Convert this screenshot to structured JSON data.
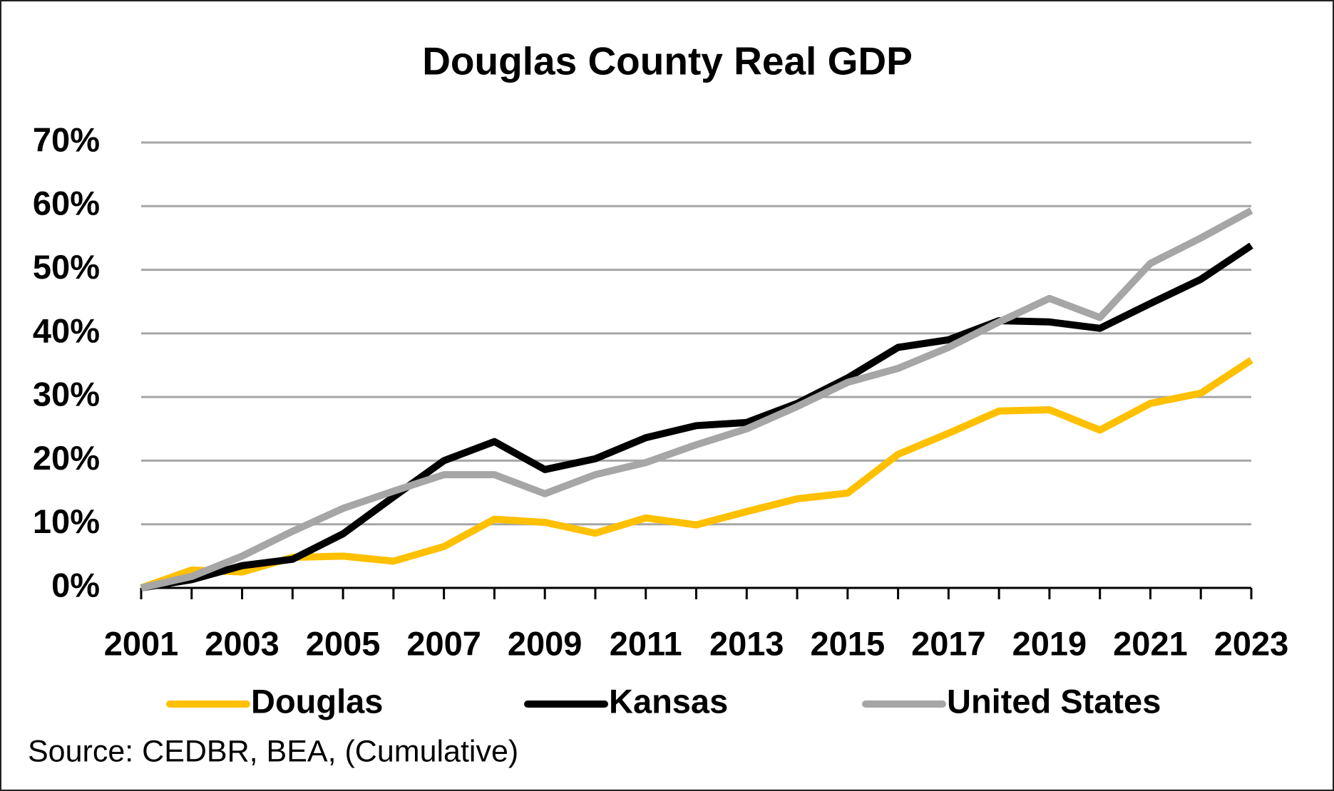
{
  "chart_data": {
    "type": "line",
    "title": "Douglas County Real GDP",
    "x": [
      2001,
      2002,
      2003,
      2004,
      2005,
      2006,
      2007,
      2008,
      2009,
      2010,
      2011,
      2012,
      2013,
      2014,
      2015,
      2016,
      2017,
      2018,
      2019,
      2020,
      2021,
      2022,
      2023
    ],
    "series": [
      {
        "name": "Douglas",
        "color": "#ffc000",
        "values": [
          0,
          2.8,
          2.5,
          4.8,
          5,
          4.2,
          6.5,
          10.8,
          10.3,
          8.6,
          11,
          9.9,
          12,
          14,
          14.9,
          21,
          24.3,
          27.8,
          28,
          24.8,
          29,
          30.6,
          35.8
        ]
      },
      {
        "name": "Kansas",
        "color": "#000000",
        "values": [
          0,
          1.3,
          3.5,
          4.5,
          8.5,
          14.3,
          20,
          23,
          18.6,
          20.3,
          23.6,
          25.5,
          26,
          29,
          33,
          37.8,
          39,
          42,
          41.8,
          40.8,
          44.7,
          48.5,
          53.8
        ]
      },
      {
        "name": "United States",
        "color": "#a6a6a6",
        "values": [
          0,
          1.8,
          5,
          8.9,
          12.5,
          15.2,
          17.8,
          17.8,
          14.8,
          17.8,
          19.7,
          22.5,
          25,
          28.5,
          32.3,
          34.5,
          37.8,
          41.8,
          45.5,
          42.5,
          51,
          55,
          59.3
        ]
      }
    ],
    "xlim": [
      2001,
      2023
    ],
    "xticks": [
      2001,
      2003,
      2005,
      2007,
      2009,
      2011,
      2013,
      2015,
      2017,
      2019,
      2021,
      2023
    ],
    "ylim": [
      0,
      70
    ],
    "yticks": [
      {
        "value": 0,
        "label": "0%"
      },
      {
        "value": 10,
        "label": "10%"
      },
      {
        "value": 20,
        "label": "20%"
      },
      {
        "value": 30,
        "label": "30%"
      },
      {
        "value": 40,
        "label": "40%"
      },
      {
        "value": 50,
        "label": "50%"
      },
      {
        "value": 60,
        "label": "60%"
      },
      {
        "value": 70,
        "label": "70%"
      }
    ],
    "grid": true,
    "legend": "bottom",
    "source": "Source: CEDBR, BEA, (Cumulative)"
  }
}
